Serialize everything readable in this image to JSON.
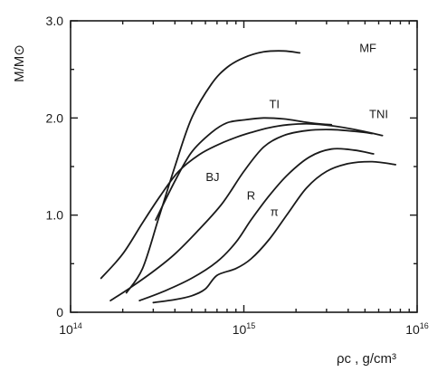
{
  "chart_data": {
    "type": "line",
    "xscale": "log",
    "xlim": [
      100000000000000.0,
      1e+16
    ],
    "ylim": [
      0,
      3.0
    ],
    "xlabel": "ρc , g/cm³",
    "ylabel": "M/M⊙",
    "x_ticks": [
      {
        "value": 100000000000000.0,
        "base": "10",
        "exp": "14"
      },
      {
        "value": 1000000000000000.0,
        "base": "10",
        "exp": "15"
      },
      {
        "value": 1e+16,
        "base": "10",
        "exp": "16"
      }
    ],
    "y_ticks": [
      {
        "value": 0,
        "label": "0"
      },
      {
        "value": 1.0,
        "label": "1.0"
      },
      {
        "value": 2.0,
        "label": "2.0"
      },
      {
        "value": 3.0,
        "label": "3.0"
      }
    ],
    "series": [
      {
        "name": "MF",
        "label_at": [
          5200000000000000.0,
          2.68
        ],
        "x": [
          210000000000000.0,
          260000000000000.0,
          320000000000000.0,
          400000000000000.0,
          500000000000000.0,
          650000000000000.0,
          800000000000000.0,
          1000000000000000.0,
          1300000000000000.0,
          1700000000000000.0,
          2100000000000000.0
        ],
        "y": [
          0.2,
          0.45,
          0.95,
          1.5,
          2.0,
          2.35,
          2.52,
          2.62,
          2.68,
          2.69,
          2.67
        ]
      },
      {
        "name": "TI",
        "label_at": [
          1500000000000000.0,
          2.1
        ],
        "x": [
          310000000000000.0,
          400000000000000.0,
          500000000000000.0,
          650000000000000.0,
          800000000000000.0,
          1000000000000000.0,
          1300000000000000.0,
          1700000000000000.0,
          2200000000000000.0,
          2700000000000000.0,
          3200000000000000.0
        ],
        "y": [
          0.95,
          1.35,
          1.65,
          1.85,
          1.95,
          1.98,
          2.0,
          1.99,
          1.96,
          1.94,
          1.93
        ]
      },
      {
        "name": "TNI",
        "label_at": [
          6000000000000000.0,
          2.0
        ],
        "x": [
          150000000000000.0,
          200000000000000.0,
          260000000000000.0,
          330000000000000.0,
          420000000000000.0,
          550000000000000.0,
          700000000000000.0,
          900000000000000.0,
          1100000000000000.0,
          1400000000000000.0,
          1800000000000000.0,
          2400000000000000.0,
          3200000000000000.0,
          4400000000000000.0,
          6300000000000000.0
        ],
        "y": [
          0.35,
          0.6,
          0.92,
          1.2,
          1.45,
          1.62,
          1.72,
          1.8,
          1.85,
          1.9,
          1.93,
          1.94,
          1.92,
          1.88,
          1.82
        ]
      },
      {
        "name": "BJ",
        "label_at": [
          660000000000000.0,
          1.35
        ],
        "x": [
          170000000000000.0,
          220000000000000.0,
          300000000000000.0,
          400000000000000.0,
          550000000000000.0,
          750000000000000.0,
          1000000000000000.0,
          1300000000000000.0,
          1700000000000000.0,
          2300000000000000.0,
          3200000000000000.0,
          4500000000000000.0,
          5500000000000000.0
        ],
        "y": [
          0.12,
          0.25,
          0.42,
          0.6,
          0.85,
          1.12,
          1.45,
          1.7,
          1.82,
          1.87,
          1.88,
          1.86,
          1.84
        ]
      },
      {
        "name": "R",
        "label_at": [
          1100000000000000.0,
          1.16
        ],
        "x": [
          250000000000000.0,
          350000000000000.0,
          500000000000000.0,
          700000000000000.0,
          900000000000000.0,
          1100000000000000.0,
          1400000000000000.0,
          1800000000000000.0,
          2400000000000000.0,
          3200000000000000.0,
          4300000000000000.0,
          5600000000000000.0
        ],
        "y": [
          0.12,
          0.22,
          0.35,
          0.52,
          0.72,
          0.95,
          1.2,
          1.42,
          1.6,
          1.68,
          1.67,
          1.63
        ]
      },
      {
        "name": "π",
        "label_at": [
          1500000000000000.0,
          0.99
        ],
        "x": [
          300000000000000.0,
          400000000000000.0,
          500000000000000.0,
          600000000000000.0,
          700000000000000.0,
          900000000000000.0,
          1100000000000000.0,
          1400000000000000.0,
          1800000000000000.0,
          2300000000000000.0,
          3000000000000000.0,
          4000000000000000.0,
          5500000000000000.0,
          7500000000000000.0
        ],
        "y": [
          0.1,
          0.13,
          0.17,
          0.24,
          0.38,
          0.45,
          0.55,
          0.75,
          1.02,
          1.28,
          1.45,
          1.53,
          1.55,
          1.52
        ]
      }
    ]
  }
}
